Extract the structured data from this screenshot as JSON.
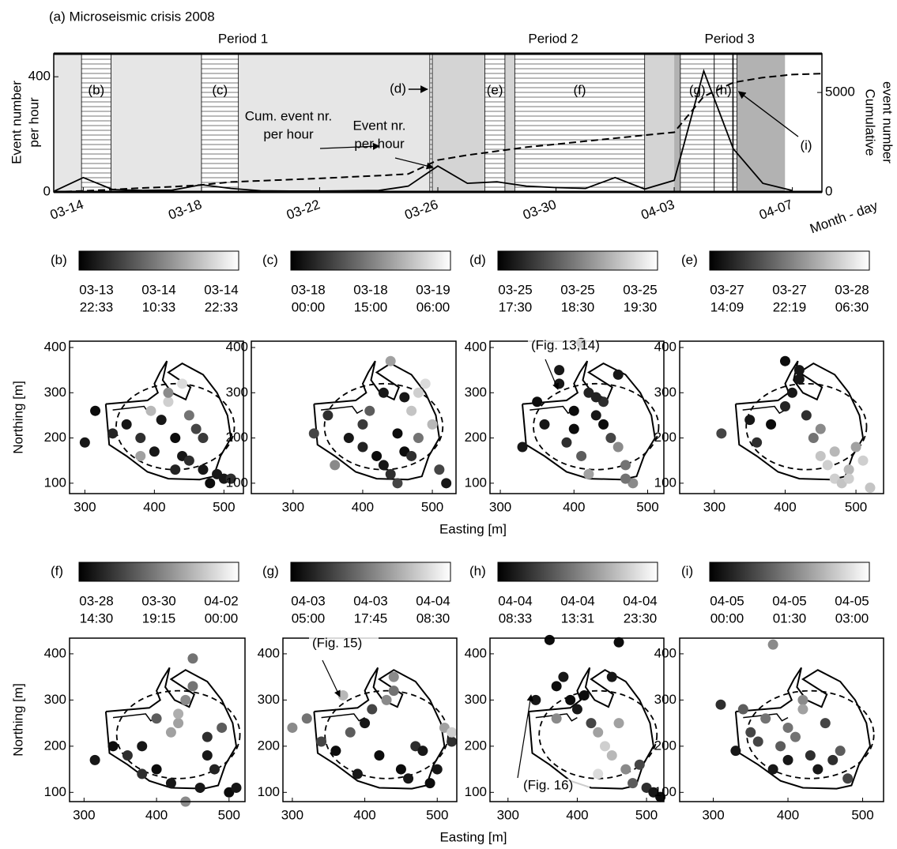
{
  "chart_data": [
    {
      "type": "line",
      "title": "(a)  Microseismic crisis 2008",
      "y_label": [
        "Event number",
        "per hour"
      ],
      "y2_label": [
        "Cumulative",
        "event number"
      ],
      "x_label": "Month - day",
      "x": [
        "03-13",
        "03-14",
        "03-15",
        "03-16",
        "03-17",
        "03-18",
        "03-19",
        "03-20",
        "03-21",
        "03-22",
        "03-23",
        "03-24",
        "03-25",
        "03-26",
        "03-27",
        "03-28",
        "03-29",
        "03-30",
        "03-31",
        "04-01",
        "04-02",
        "04-03",
        "04-04",
        "04-05",
        "04-06",
        "04-07",
        "04-08"
      ],
      "xlim": [
        "03-13",
        "04-08"
      ],
      "xticks": [
        "03-14",
        "03-18",
        "03-22",
        "03-26",
        "03-30",
        "04-03",
        "04-07"
      ],
      "ylim": [
        0,
        480
      ],
      "yticks": [
        0,
        400
      ],
      "y2lim": [
        0,
        6950
      ],
      "y2ticks": [
        0,
        5000
      ],
      "periods": [
        {
          "name": "Period 1",
          "color": "#e6e6e6",
          "text_color": "#b4b4b4",
          "start": "03-13 00:00",
          "end": "03-25 19:30"
        },
        {
          "name": "Period 2",
          "color": "#d4d4d4",
          "text_color": "#777777",
          "start": "03-25 19:30",
          "end": "04-03 00:00"
        },
        {
          "name": "Period 3",
          "color": "#b2b2b2",
          "text_color": "#555555",
          "start": "04-03 00:00",
          "end": "04-06 18:00"
        }
      ],
      "series": [
        {
          "label": [
            "Event nr.",
            "per hour"
          ],
          "color": "#000000",
          "style": "solid",
          "values": [
            2,
            50,
            8,
            5,
            6,
            25,
            12,
            4,
            3,
            3,
            4,
            5,
            20,
            90,
            30,
            35,
            20,
            15,
            12,
            50,
            10,
            40,
            420,
            150,
            30,
            5,
            null
          ]
        },
        {
          "label": [
            "Cum. event nr.",
            "per hour"
          ],
          "color": "#000000",
          "style": "dashed",
          "axis": "y2",
          "values": [
            0,
            50,
            120,
            200,
            260,
            350,
            500,
            560,
            620,
            680,
            750,
            820,
            900,
            1600,
            1850,
            2050,
            2250,
            2400,
            2550,
            2700,
            2850,
            3000,
            4800,
            5500,
            5750,
            5900,
            5950
          ]
        }
      ]
    },
    {
      "type": "scatter",
      "label": "(b)",
      "colormap": "gray",
      "ylabel": "Northing [m]",
      "cticks": [
        {
          "date": "03-13",
          "time": "22:33"
        },
        {
          "date": "03-14",
          "time": "10:33"
        },
        {
          "date": "03-14",
          "time": "22:33"
        }
      ],
      "xlim": [
        278,
        528
      ],
      "ylim": [
        77,
        414
      ],
      "xticks": [
        300,
        400,
        500
      ],
      "yticks": [
        100,
        200,
        300,
        400
      ],
      "x": [
        300,
        315,
        340,
        360,
        380,
        395,
        410,
        420,
        430,
        440,
        450,
        460,
        470,
        480,
        490,
        500,
        510,
        420,
        440,
        400,
        470,
        450,
        430,
        380
      ],
      "values": [
        190,
        260,
        210,
        230,
        200,
        260,
        240,
        280,
        200,
        160,
        150,
        220,
        130,
        100,
        120,
        110,
        110,
        300,
        320,
        170,
        200,
        250,
        130,
        160
      ],
      "shade": [
        0.1,
        0.05,
        0.15,
        0.1,
        0.2,
        0.8,
        0.1,
        0.9,
        0.05,
        0.1,
        0.2,
        0.3,
        0.1,
        0.05,
        0.1,
        0.1,
        0.2,
        0.6,
        0.95,
        0.1,
        0.25,
        0.5,
        0.15,
        0.7
      ]
    },
    {
      "type": "scatter",
      "label": "(c)",
      "colormap": "gray",
      "xlabel": "Easting [m]",
      "cticks": [
        {
          "date": "03-18",
          "time": "00:00"
        },
        {
          "date": "03-18",
          "time": "15:00"
        },
        {
          "date": "03-19",
          "time": "06:00"
        }
      ],
      "xlim": [
        240,
        534
      ],
      "ylim": [
        77,
        414
      ],
      "xticks": [
        300,
        400,
        500
      ],
      "yticks": [
        100,
        200,
        300,
        400
      ],
      "x": [
        330,
        350,
        380,
        400,
        420,
        430,
        440,
        450,
        460,
        470,
        480,
        490,
        500,
        510,
        520,
        410,
        440,
        460,
        480,
        400,
        360,
        450,
        430,
        470
      ],
      "values": [
        210,
        250,
        200,
        180,
        160,
        140,
        120,
        100,
        170,
        260,
        300,
        320,
        230,
        130,
        100,
        260,
        370,
        290,
        200,
        230,
        140,
        210,
        300,
        160
      ],
      "shade": [
        0.3,
        0.2,
        0.1,
        0.15,
        0.05,
        0.1,
        0.2,
        0.3,
        0.05,
        0.85,
        0.9,
        0.95,
        0.8,
        0.3,
        0.1,
        0.4,
        0.7,
        0.1,
        0.5,
        0.25,
        0.6,
        0.05,
        0.1,
        0.2
      ]
    },
    {
      "type": "scatter",
      "label": "(d)",
      "colormap": "gray",
      "annotation": "(Fig. 13,14)",
      "cticks": [
        {
          "date": "03-25",
          "time": "17:30"
        },
        {
          "date": "03-25",
          "time": "18:30"
        },
        {
          "date": "03-25",
          "time": "19:30"
        }
      ],
      "xlim": [
        286,
        522
      ],
      "ylim": [
        77,
        414
      ],
      "xticks": [
        300,
        400,
        500
      ],
      "yticks": [
        100,
        200,
        300,
        400
      ],
      "x": [
        330,
        350,
        380,
        400,
        410,
        420,
        430,
        440,
        450,
        460,
        470,
        480,
        410,
        380,
        400,
        440,
        460,
        420,
        470,
        360,
        430,
        390
      ],
      "values": [
        180,
        280,
        320,
        260,
        410,
        300,
        250,
        230,
        200,
        340,
        140,
        100,
        160,
        350,
        220,
        280,
        180,
        120,
        110,
        230,
        290,
        190
      ],
      "shade": [
        0.1,
        0.05,
        0.1,
        0.05,
        0.1,
        0.15,
        0.1,
        0.05,
        0.3,
        0.1,
        0.5,
        0.6,
        0.4,
        0.1,
        0.05,
        0.2,
        0.6,
        0.7,
        0.5,
        0.1,
        0.15,
        0.2
      ]
    },
    {
      "type": "scatter",
      "label": "(e)",
      "colormap": "gray",
      "cticks": [
        {
          "date": "03-27",
          "time": "14:09"
        },
        {
          "date": "03-27",
          "time": "22:19"
        },
        {
          "date": "03-28",
          "time": "06:30"
        }
      ],
      "xlim": [
        251,
        539
      ],
      "ylim": [
        77,
        414
      ],
      "xticks": [
        300,
        400,
        500
      ],
      "yticks": [
        100,
        200,
        300,
        400
      ],
      "x": [
        310,
        350,
        380,
        400,
        410,
        420,
        430,
        440,
        450,
        460,
        470,
        480,
        490,
        500,
        510,
        520,
        400,
        420,
        450,
        470,
        490,
        360
      ],
      "values": [
        210,
        240,
        230,
        370,
        300,
        350,
        250,
        200,
        160,
        140,
        110,
        100,
        130,
        180,
        150,
        90,
        270,
        330,
        220,
        170,
        110,
        190
      ],
      "shade": [
        0.3,
        0.1,
        0.05,
        0.05,
        0.1,
        0.1,
        0.2,
        0.5,
        0.85,
        0.9,
        0.9,
        0.85,
        0.8,
        0.7,
        0.9,
        0.85,
        0.15,
        0.1,
        0.6,
        0.8,
        0.9,
        0.2
      ]
    },
    {
      "type": "scatter",
      "label": "(f)",
      "colormap": "gray",
      "ylabel": "Northing [m]",
      "cticks": [
        {
          "date": "03-28",
          "time": "14:30"
        },
        {
          "date": "03-30",
          "time": "19:15"
        },
        {
          "date": "04-02",
          "time": "00:00"
        }
      ],
      "xlim": [
        280,
        522
      ],
      "ylim": [
        80,
        434
      ],
      "xticks": [
        300,
        400,
        500
      ],
      "yticks": [
        100,
        200,
        300,
        400
      ],
      "x": [
        315,
        340,
        360,
        380,
        400,
        420,
        430,
        440,
        450,
        460,
        470,
        480,
        490,
        500,
        510,
        440,
        430,
        420,
        450,
        400,
        470,
        380
      ],
      "values": [
        170,
        200,
        180,
        200,
        150,
        120,
        250,
        300,
        390,
        110,
        220,
        150,
        240,
        100,
        110,
        80,
        270,
        230,
        330,
        260,
        180,
        140
      ],
      "shade": [
        0.1,
        0.05,
        0.2,
        0.1,
        0.05,
        0.1,
        0.7,
        0.6,
        0.5,
        0.1,
        0.2,
        0.15,
        0.4,
        0.05,
        0.1,
        0.6,
        0.75,
        0.7,
        0.5,
        0.4,
        0.1,
        0.2
      ]
    },
    {
      "type": "scatter",
      "label": "(g)",
      "colormap": "gray",
      "xlabel": "Easting [m]",
      "annotation": "(Fig. 15)",
      "cticks": [
        {
          "date": "04-03",
          "time": "05:00"
        },
        {
          "date": "04-03",
          "time": "17:45"
        },
        {
          "date": "04-04",
          "time": "08:30"
        }
      ],
      "xlim": [
        287,
        527
      ],
      "ylim": [
        80,
        434
      ],
      "xticks": [
        300,
        400,
        500
      ],
      "yticks": [
        100,
        200,
        300,
        400
      ],
      "x": [
        300,
        320,
        340,
        360,
        380,
        400,
        420,
        430,
        440,
        450,
        460,
        470,
        480,
        490,
        500,
        510,
        520,
        410,
        370,
        390,
        440,
        520
      ],
      "values": [
        240,
        260,
        210,
        190,
        230,
        250,
        180,
        300,
        320,
        150,
        130,
        200,
        190,
        120,
        150,
        240,
        210,
        280,
        310,
        140,
        350,
        230
      ],
      "shade": [
        0.6,
        0.5,
        0.3,
        0.05,
        0.4,
        0.1,
        0.05,
        0.6,
        0.5,
        0.05,
        0.1,
        0.2,
        0.1,
        0.05,
        0.1,
        0.7,
        0.2,
        0.3,
        0.8,
        0.1,
        0.6,
        0.9
      ]
    },
    {
      "type": "scatter",
      "label": "(h)",
      "colormap": "gray",
      "annotation": "(Fig. 16)",
      "cticks": [
        {
          "date": "04-04",
          "time": "08:33"
        },
        {
          "date": "04-04",
          "time": "13:31"
        },
        {
          "date": "04-04",
          "time": "23:30"
        }
      ],
      "xlim": [
        274,
        525
      ],
      "ylim": [
        80,
        434
      ],
      "xticks": [
        300,
        400,
        500
      ],
      "yticks": [
        100,
        200,
        300,
        400
      ],
      "x": [
        340,
        360,
        370,
        380,
        390,
        400,
        410,
        420,
        430,
        440,
        450,
        460,
        470,
        480,
        490,
        500,
        510,
        520,
        460,
        370,
        430,
        450
      ],
      "values": [
        300,
        430,
        330,
        350,
        300,
        280,
        310,
        250,
        230,
        200,
        180,
        425,
        150,
        120,
        160,
        110,
        100,
        90,
        250,
        260,
        140,
        350
      ],
      "shade": [
        0.1,
        0.05,
        0.05,
        0.1,
        0.05,
        0.1,
        0.05,
        0.3,
        0.7,
        0.9,
        0.8,
        0.05,
        0.6,
        0.4,
        0.3,
        0.2,
        0.1,
        0.05,
        0.7,
        0.6,
        0.95,
        0.1
      ]
    },
    {
      "type": "scatter",
      "label": "(i)",
      "colormap": "gray",
      "cticks": [
        {
          "date": "04-05",
          "time": "00:00"
        },
        {
          "date": "04-05",
          "time": "01:30"
        },
        {
          "date": "04-05",
          "time": "03:00"
        }
      ],
      "xlim": [
        255,
        528
      ],
      "ylim": [
        80,
        434
      ],
      "xticks": [
        300,
        400,
        500
      ],
      "yticks": [
        100,
        200,
        300,
        400
      ],
      "x": [
        310,
        330,
        350,
        370,
        380,
        390,
        400,
        410,
        420,
        430,
        440,
        450,
        460,
        470,
        480,
        420,
        400,
        380,
        360,
        340
      ],
      "values": [
        290,
        190,
        230,
        260,
        420,
        200,
        170,
        220,
        300,
        180,
        150,
        250,
        170,
        190,
        130,
        280,
        240,
        150,
        210,
        280
      ],
      "shade": [
        0.2,
        0.1,
        0.3,
        0.5,
        0.6,
        0.4,
        0.1,
        0.5,
        0.6,
        0.2,
        0.1,
        0.3,
        0.2,
        0.4,
        0.3,
        0.7,
        0.5,
        0.1,
        0.3,
        0.4
      ]
    }
  ]
}
